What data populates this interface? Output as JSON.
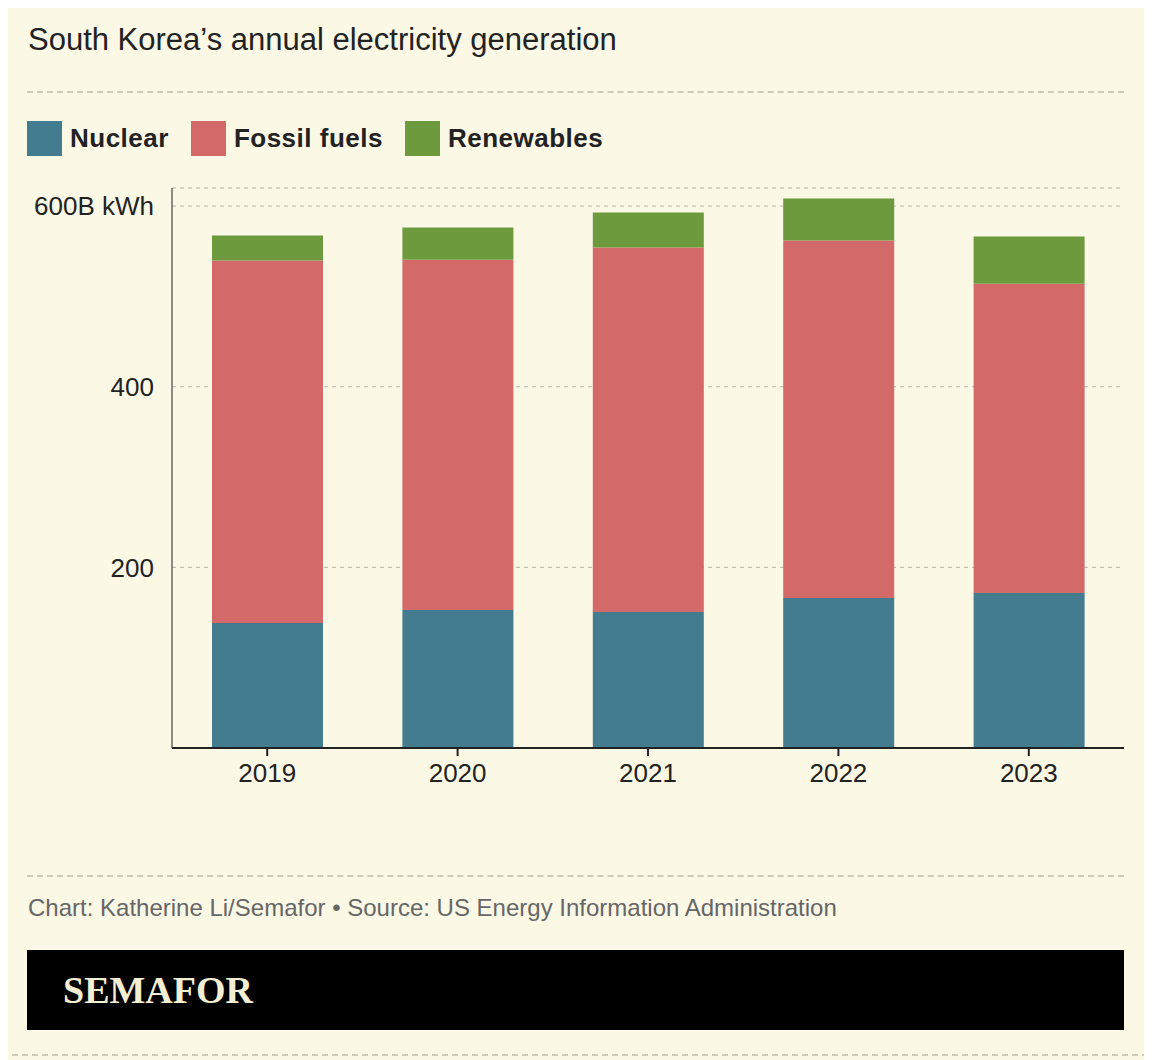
{
  "chart_data": {
    "type": "bar",
    "title": "South Korea’s annual electricity generation",
    "categories": [
      "2019",
      "2020",
      "2021",
      "2022",
      "2023"
    ],
    "series": [
      {
        "name": "Nuclear",
        "color": "#437b8f",
        "values": [
          138.5,
          152.9,
          150.7,
          166.2,
          171.7
        ]
      },
      {
        "name": "Fossil fuels",
        "color": "#d4696a",
        "values": [
          401.1,
          387.8,
          403.3,
          395.6,
          342.4
        ]
      },
      {
        "name": "Renewables",
        "color": "#6e9a3e",
        "values": [
          27.7,
          35.5,
          38.8,
          46.5,
          52.1
        ]
      }
    ],
    "stacked": true,
    "ylim": [
      0,
      620
    ],
    "yticks": [
      200,
      400,
      {
        "value": 600,
        "label": "600B kWh"
      }
    ],
    "grid": true,
    "legend": "top-left",
    "source": "Chart: Katherine Li/Semafor • Source: US Energy Information Administration",
    "logo": "SEMAFOR"
  }
}
